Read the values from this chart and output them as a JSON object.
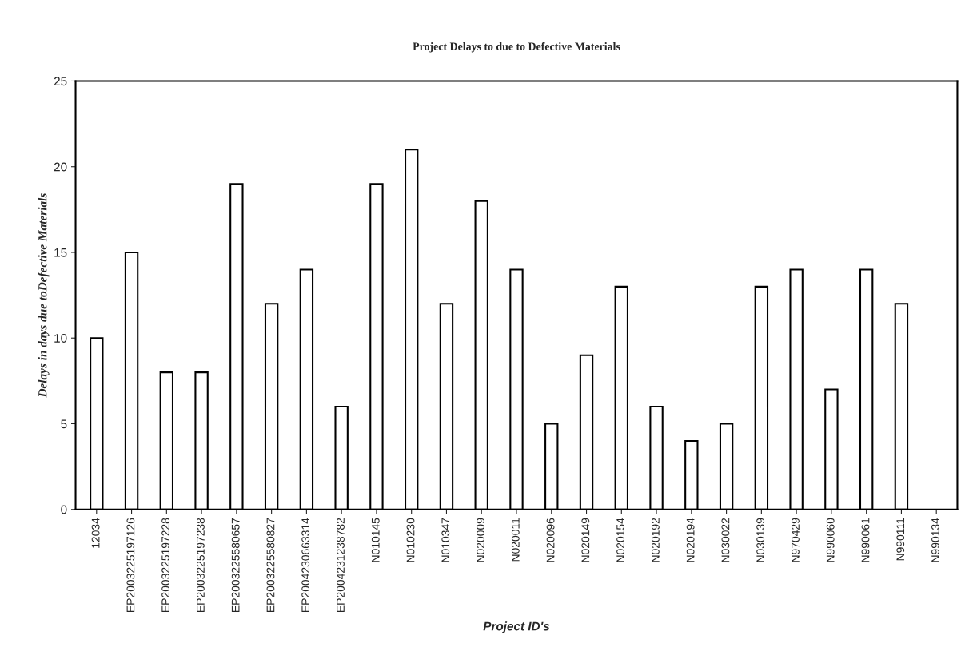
{
  "chart_data": {
    "type": "bar",
    "title": "Project Delays to due to Defective Materials",
    "xlabel": "Project ID's",
    "ylabel": "Delays in days due toDefective Materials",
    "categories": [
      "12034",
      "EP2003225197126",
      "EP2003225197228",
      "EP2003225197238",
      "EP2003225580657",
      "EP2003225580827",
      "EP2004230663314",
      "EP2004231238782",
      "N010145",
      "N010230",
      "N010347",
      "N020009",
      "N020011",
      "N020096",
      "N020149",
      "N020154",
      "N020192",
      "N020194",
      "N030022",
      "N030139",
      "N970429",
      "N990060",
      "N990061",
      "N990111",
      "N990134"
    ],
    "values": [
      10,
      15,
      8,
      8,
      19,
      12,
      14,
      6,
      19,
      21,
      12,
      18,
      14,
      5,
      9,
      13,
      6,
      4,
      5,
      13,
      14,
      7,
      14,
      12,
      null
    ],
    "color": "#ffffff",
    "ylim": [
      0,
      25
    ],
    "yticks": [
      0,
      5,
      10,
      15,
      20,
      25
    ],
    "grid": false,
    "legend": false
  }
}
